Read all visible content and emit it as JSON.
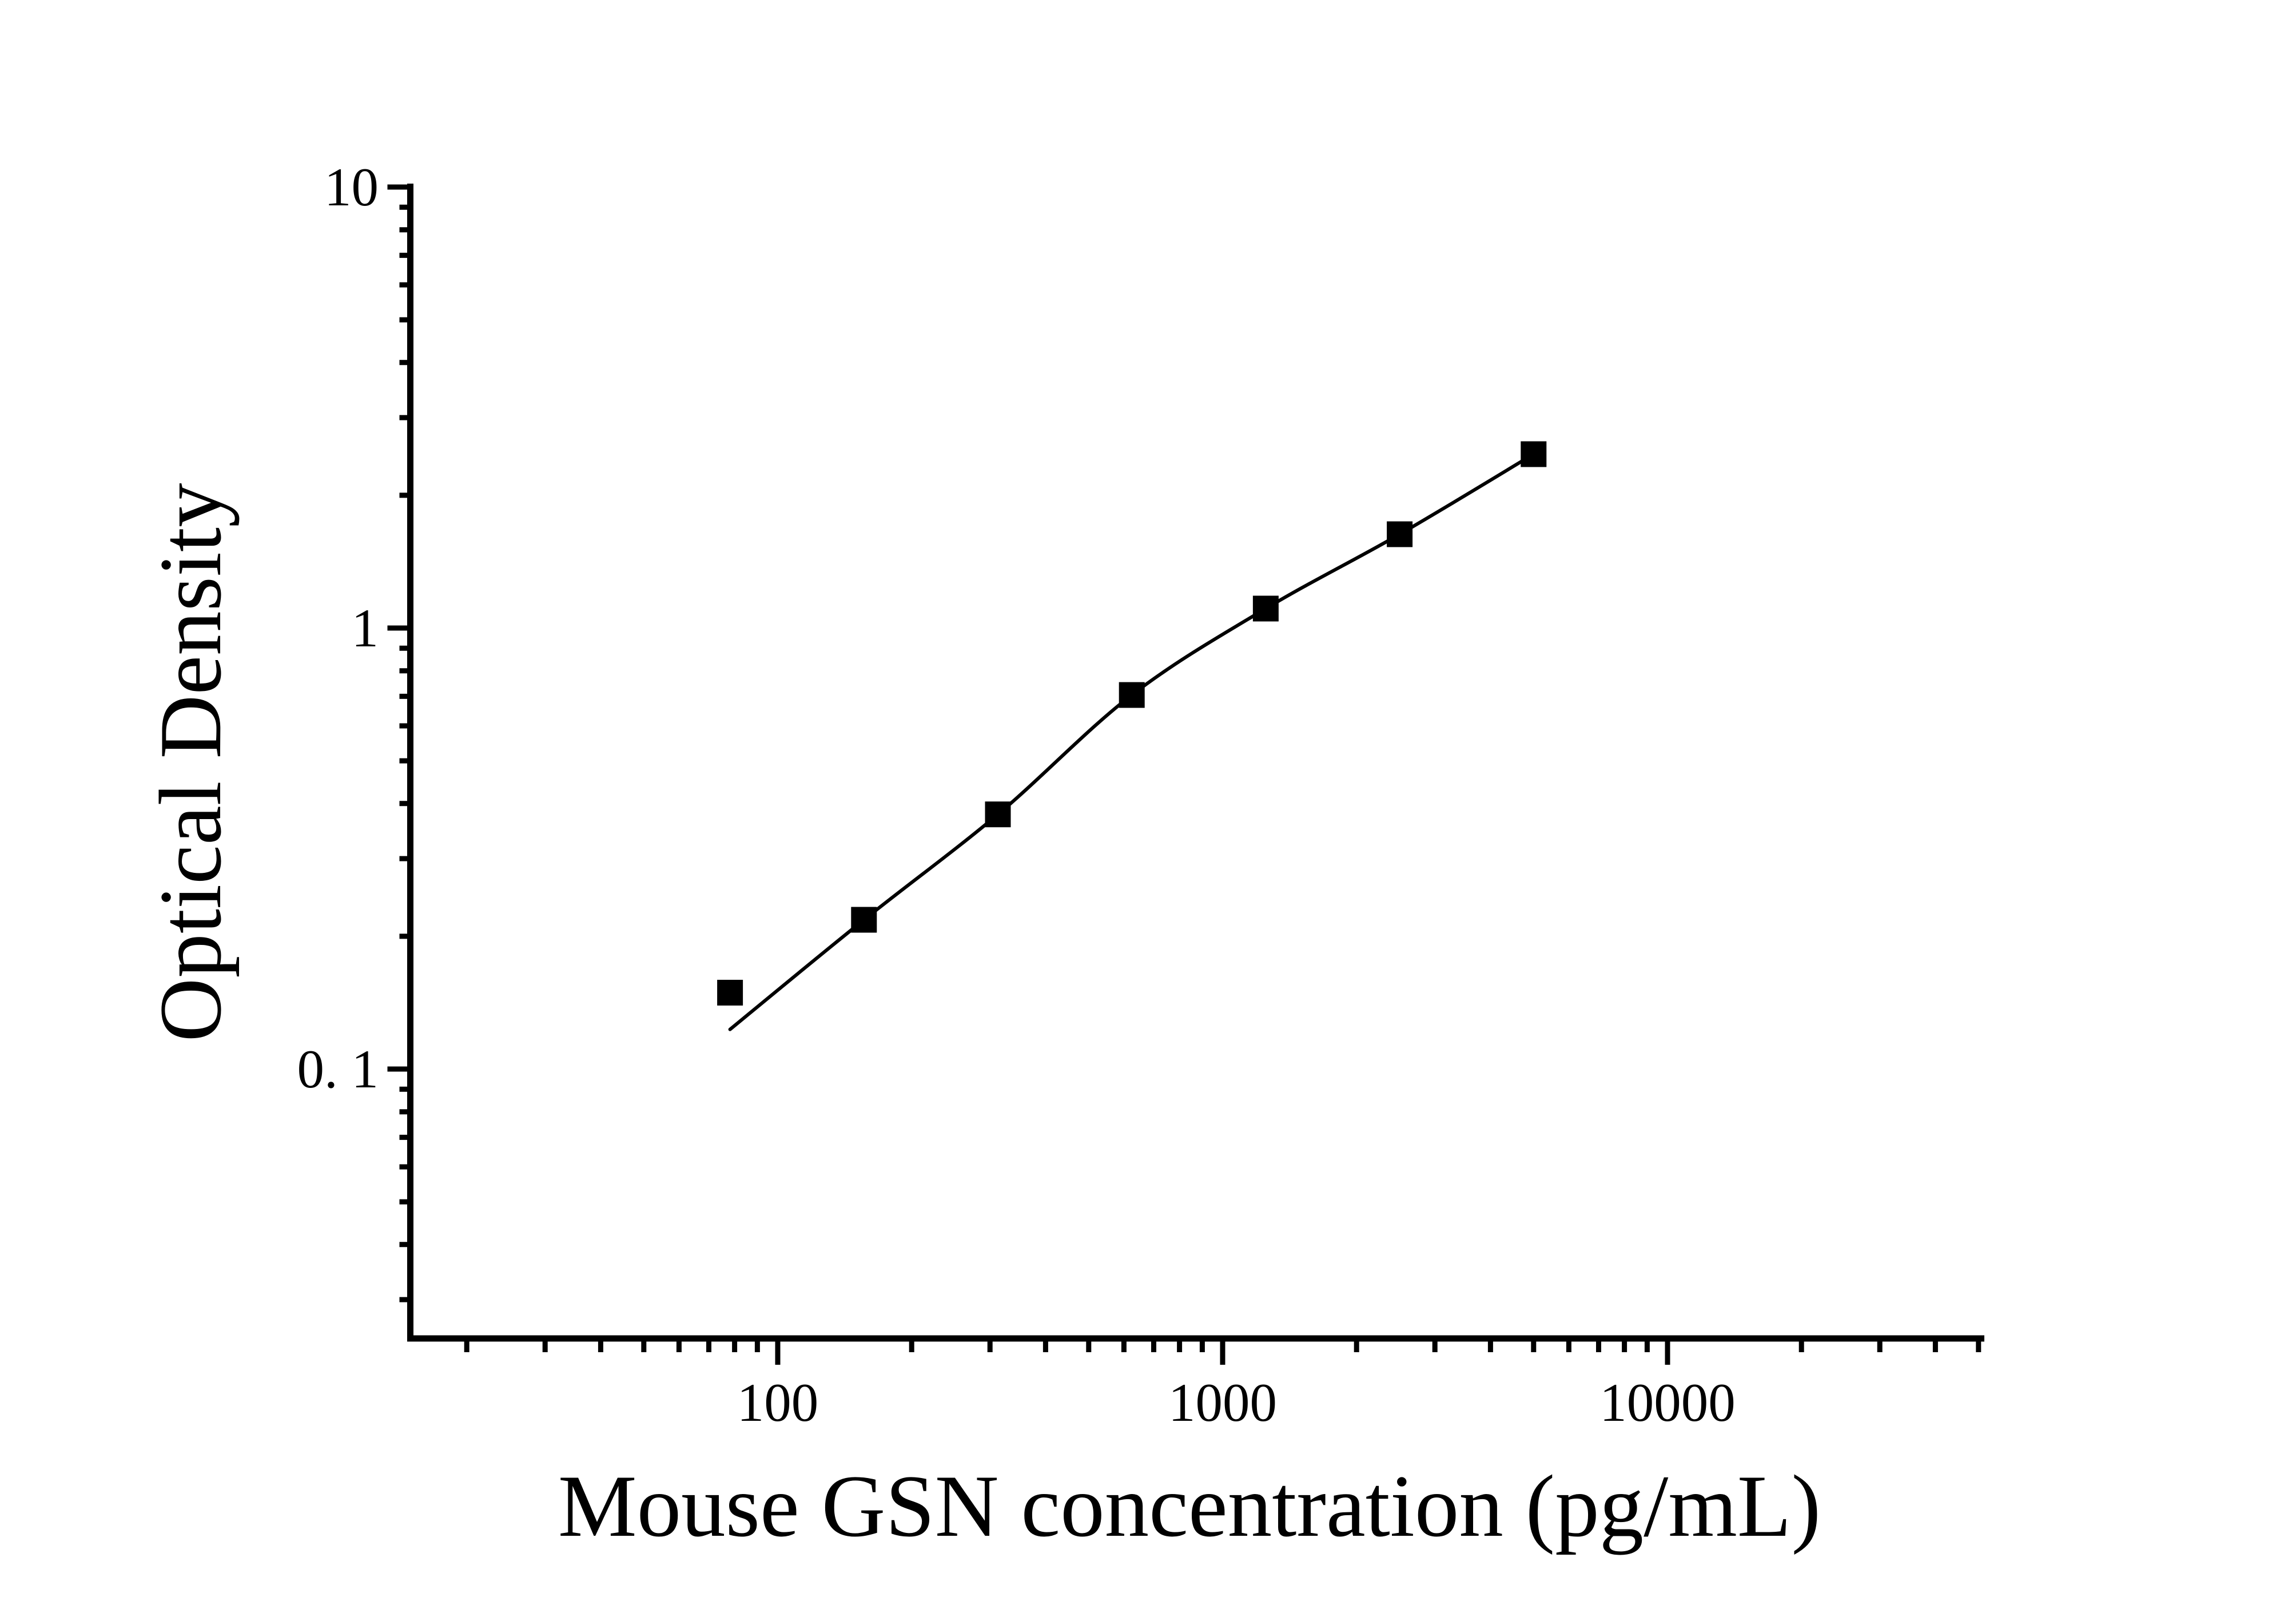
{
  "chart_data": {
    "type": "scatter",
    "title": "",
    "xlabel": "Mouse GSN concentration (pg/mL)",
    "ylabel": "Optical Density",
    "x_scale": "log",
    "y_scale": "log",
    "xlim": [
      14.7,
      51500
    ],
    "ylim": [
      0.024,
      10
    ],
    "grid": false,
    "legend": null,
    "x_major_ticks": [
      100,
      1000,
      10000
    ],
    "x_tick_labels": [
      "100",
      "1000",
      "10000"
    ],
    "y_major_ticks": [
      10,
      1,
      0.1
    ],
    "y_tick_labels": [
      "10",
      "1",
      "0. 1"
    ],
    "series": [
      {
        "name": "standard-points",
        "marker": "filled-square",
        "color": "#000000",
        "x": [
          78.13,
          156.25,
          312.5,
          625,
          1250,
          2500,
          5000
        ],
        "y": [
          0.149,
          0.218,
          0.378,
          0.705,
          1.107,
          1.632,
          2.479
        ]
      }
    ],
    "fit_curve": {
      "name": "4pl-fit-line",
      "color": "#000000",
      "x": [
        78.13,
        156.25,
        312.5,
        625,
        1250,
        2500,
        5000
      ],
      "y": [
        0.123,
        0.218,
        0.378,
        0.705,
        1.107,
        1.632,
        2.479
      ]
    }
  }
}
